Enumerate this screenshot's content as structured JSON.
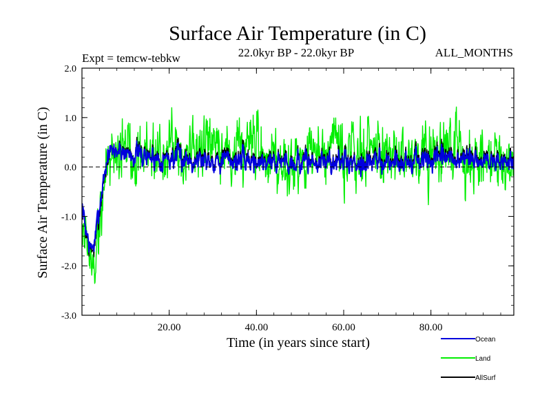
{
  "chart_data": {
    "type": "line",
    "title": "Surface Air Temperature (in C)",
    "subtitle_left": "Expt = temcw-tebkw",
    "subtitle_center": "22.0kyr BP - 22.0kyr BP",
    "subtitle_right": "ALL_MONTHS",
    "xlabel": "Time (in years since start)",
    "ylabel": "Surface Air Temperature (in C)",
    "xlim": [
      0,
      99
    ],
    "ylim": [
      -3.0,
      2.0
    ],
    "x_ticks": [
      20,
      40,
      60,
      80
    ],
    "x_tick_labels": [
      "20.00",
      "40.00",
      "60.00",
      "80.00"
    ],
    "y_ticks": [
      -3.0,
      -2.0,
      -1.0,
      0.0,
      1.0,
      2.0
    ],
    "y_tick_labels": [
      "-3.0",
      "-2.0",
      "-1.0",
      "0.0",
      "1.0",
      "2.0"
    ],
    "zero_line": true,
    "legend_position": "bottom-right",
    "sampling": "monthly (approximate, read from figure envelope)",
    "series": [
      {
        "name": "Ocean",
        "color": "#0000dd",
        "trend": [
          [
            0,
            -0.8
          ],
          [
            1,
            -1.3
          ],
          [
            2,
            -1.7
          ],
          [
            3,
            -1.5
          ],
          [
            4,
            -0.8
          ],
          [
            5,
            -0.2
          ],
          [
            6,
            0.25
          ],
          [
            8,
            0.35
          ],
          [
            10,
            0.3
          ],
          [
            15,
            0.2
          ],
          [
            30,
            0.15
          ],
          [
            50,
            0.1
          ],
          [
            70,
            0.1
          ],
          [
            85,
            0.15
          ],
          [
            99,
            0.1
          ]
        ],
        "noise_amplitude": 0.3,
        "seed": 7
      },
      {
        "name": "Land",
        "color": "#00ee00",
        "trend": [
          [
            0,
            -0.9
          ],
          [
            1,
            -1.5
          ],
          [
            2,
            -2.0
          ],
          [
            3,
            -1.9
          ],
          [
            4,
            -1.2
          ],
          [
            5,
            -0.4
          ],
          [
            6,
            0.2
          ],
          [
            8,
            0.4
          ],
          [
            10,
            0.4
          ],
          [
            15,
            0.3
          ],
          [
            30,
            0.3
          ],
          [
            50,
            0.2
          ],
          [
            70,
            0.25
          ],
          [
            85,
            0.3
          ],
          [
            99,
            0.2
          ]
        ],
        "noise_amplitude": 0.9,
        "seed": 19
      },
      {
        "name": "AllSurf",
        "color": "#000000",
        "trend": [
          [
            0,
            -0.8
          ],
          [
            1,
            -1.35
          ],
          [
            2,
            -1.75
          ],
          [
            3,
            -1.6
          ],
          [
            4,
            -0.9
          ],
          [
            5,
            -0.25
          ],
          [
            6,
            0.22
          ],
          [
            8,
            0.37
          ],
          [
            10,
            0.33
          ],
          [
            15,
            0.23
          ],
          [
            30,
            0.2
          ],
          [
            50,
            0.13
          ],
          [
            70,
            0.15
          ],
          [
            85,
            0.2
          ],
          [
            99,
            0.13
          ]
        ],
        "noise_amplitude": 0.35,
        "seed": 7
      }
    ]
  }
}
